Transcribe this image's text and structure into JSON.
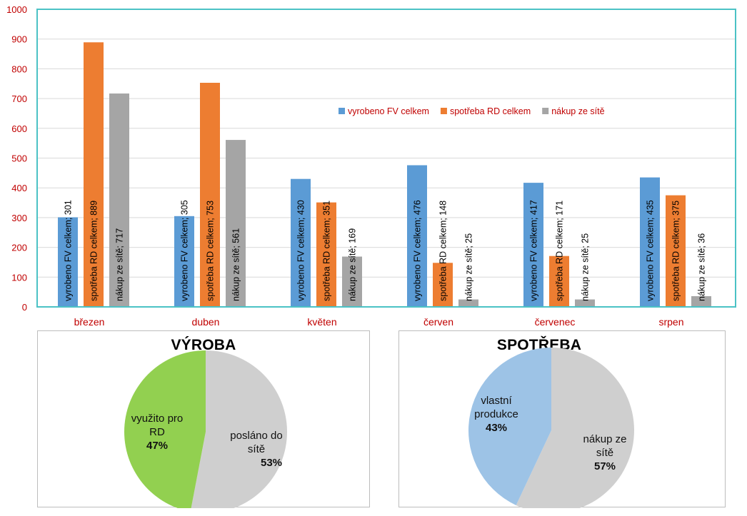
{
  "chart_data": [
    {
      "type": "bar",
      "categories": [
        "březen",
        "duben",
        "květen",
        "červen",
        "červenec",
        "srpen"
      ],
      "series": [
        {
          "name": "vyrobeno FV celkem",
          "values": [
            301,
            305,
            430,
            476,
            417,
            435
          ],
          "color": "#5b9bd5"
        },
        {
          "name": "spotřeba RD celkem",
          "values": [
            889,
            753,
            351,
            148,
            171,
            375
          ],
          "color": "#ed7d31"
        },
        {
          "name": "nákup ze sítě",
          "values": [
            717,
            561,
            169,
            25,
            25,
            36
          ],
          "color": "#a5a5a5"
        }
      ],
      "ylim": [
        0,
        1000
      ],
      "yticks": [
        0,
        100,
        200,
        300,
        400,
        500,
        600,
        700,
        800,
        900,
        1000
      ],
      "grid": true,
      "legend": "top-right",
      "data_label_format": "{series}; {value}",
      "colors": {
        "axis_text": "#c00000",
        "category_text": "#c00000",
        "plot_border": "#4bc2c5",
        "grid": "#d9d9d9"
      }
    },
    {
      "type": "pie",
      "title": "VÝROBA",
      "slices": [
        {
          "label": "poslano",
          "label_lines": [
            "posláno do",
            "sítě"
          ],
          "pct_text": "53%",
          "value": 53,
          "color": "#cfcfcf"
        },
        {
          "label": "vyuzito",
          "label_lines": [
            "využito pro",
            "RD"
          ],
          "pct_text": "47%",
          "value": 47,
          "color": "#92d050"
        }
      ]
    },
    {
      "type": "pie",
      "title": "SPOTŘEBA",
      "slices": [
        {
          "label": "nakup",
          "label_lines": [
            "nákup ze",
            "sítě"
          ],
          "pct_text": "57%",
          "value": 57,
          "color": "#cfcfcf"
        },
        {
          "label": "vlastni",
          "label_lines": [
            "vlastní",
            "produkce"
          ],
          "pct_text": "43%",
          "value": 43,
          "color": "#9dc3e6"
        }
      ]
    }
  ]
}
